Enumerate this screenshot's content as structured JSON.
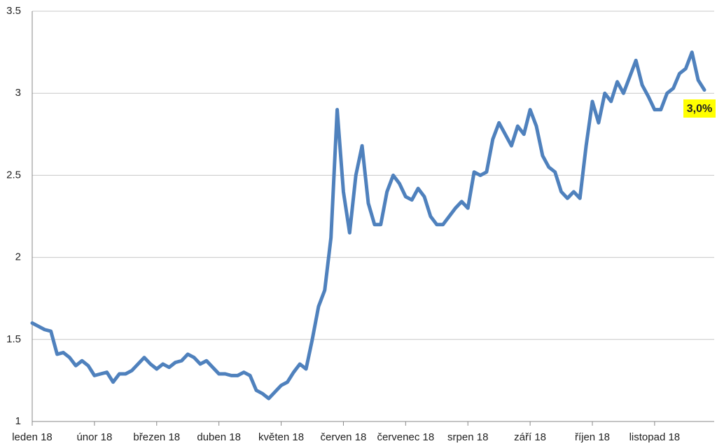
{
  "chart_data": {
    "type": "line",
    "categories": [
      "leden 18",
      null,
      null,
      null,
      null,
      null,
      null,
      null,
      null,
      null,
      "únor 18",
      null,
      null,
      null,
      null,
      null,
      null,
      null,
      null,
      null,
      "březen 18",
      null,
      null,
      null,
      null,
      null,
      null,
      null,
      null,
      null,
      "duben 18",
      null,
      null,
      null,
      null,
      null,
      null,
      null,
      null,
      null,
      "květen 18",
      null,
      null,
      null,
      null,
      null,
      null,
      null,
      null,
      null,
      "červen 18",
      null,
      null,
      null,
      null,
      null,
      null,
      null,
      null,
      null,
      "červenec 18",
      null,
      null,
      null,
      null,
      null,
      null,
      null,
      null,
      null,
      "srpen 18",
      null,
      null,
      null,
      null,
      null,
      null,
      null,
      null,
      null,
      "září 18",
      null,
      null,
      null,
      null,
      null,
      null,
      null,
      null,
      null,
      "říjen 18",
      null,
      null,
      null,
      null,
      null,
      null,
      null,
      null,
      null,
      "listopad 18",
      null,
      null,
      null,
      null,
      null,
      null,
      null,
      null
    ],
    "series": [
      {
        "color": "#4f81bd",
        "values": [
          1.6,
          1.58,
          1.56,
          1.55,
          1.41,
          1.42,
          1.39,
          1.34,
          1.37,
          1.34,
          1.28,
          1.29,
          1.3,
          1.24,
          1.29,
          1.29,
          1.31,
          1.35,
          1.39,
          1.35,
          1.32,
          1.35,
          1.33,
          1.36,
          1.37,
          1.41,
          1.39,
          1.35,
          1.37,
          1.33,
          1.29,
          1.29,
          1.28,
          1.28,
          1.3,
          1.28,
          1.19,
          1.17,
          1.14,
          1.18,
          1.22,
          1.24,
          1.3,
          1.35,
          1.32,
          1.5,
          1.7,
          1.8,
          2.12,
          2.9,
          2.4,
          2.15,
          2.5,
          2.68,
          2.33,
          2.2,
          2.2,
          2.4,
          2.5,
          2.45,
          2.37,
          2.35,
          2.42,
          2.37,
          2.25,
          2.2,
          2.2,
          2.25,
          2.3,
          2.34,
          2.3,
          2.52,
          2.5,
          2.52,
          2.72,
          2.82,
          2.75,
          2.68,
          2.8,
          2.75,
          2.9,
          2.8,
          2.62,
          2.55,
          2.52,
          2.4,
          2.36,
          2.4,
          2.36,
          2.68,
          2.95,
          2.82,
          3.0,
          2.95,
          3.07,
          3.0,
          3.1,
          3.2,
          3.05,
          2.98,
          2.9,
          2.9,
          3.0,
          3.03,
          3.12,
          3.15,
          3.25,
          3.08,
          3.02
        ]
      }
    ],
    "ylim": [
      1,
      3.5
    ],
    "yticks": [
      1,
      1.5,
      2,
      2.5,
      3,
      3.5
    ],
    "grid": true,
    "annotation": "3,0%"
  }
}
